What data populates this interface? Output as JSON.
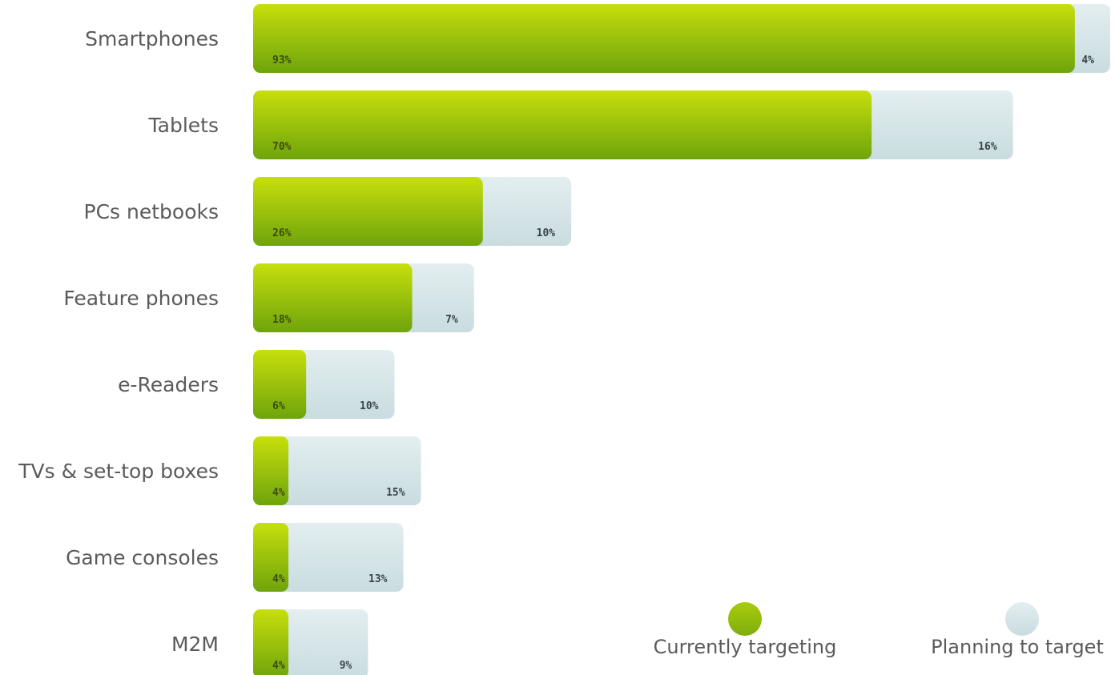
{
  "chart_data": {
    "type": "bar",
    "orientation": "horizontal",
    "stacked": true,
    "categories": [
      "Smartphones",
      "Tablets",
      "PCs netbooks",
      "Feature phones",
      "e-Readers",
      "TVs & set-top boxes",
      "Game consoles",
      "M2M"
    ],
    "series": [
      {
        "name": "Currently targeting",
        "values": [
          93,
          70,
          26,
          18,
          6,
          4,
          4,
          4
        ],
        "labels": [
          "93%",
          "70%",
          "26%",
          "18%",
          "6%",
          "4%",
          "4%",
          "4%"
        ],
        "color": "#8bb511"
      },
      {
        "name": "Planning to target",
        "values": [
          4,
          16,
          10,
          7,
          10,
          15,
          13,
          9
        ],
        "labels": [
          "4%",
          "16%",
          "10%",
          "7%",
          "10%",
          "15%",
          "13%",
          "9%"
        ],
        "color": "#cfe1e3"
      }
    ],
    "title": "",
    "xlabel": "",
    "ylabel": "",
    "xlim": [
      0,
      97
    ],
    "grid": false,
    "legend": "bottom-right",
    "colors": {
      "current_top": "#c7df0c",
      "current_bottom": "#6ea40c",
      "plan_top": "#e3eef0",
      "plan_bottom": "#c9dcdf"
    }
  }
}
